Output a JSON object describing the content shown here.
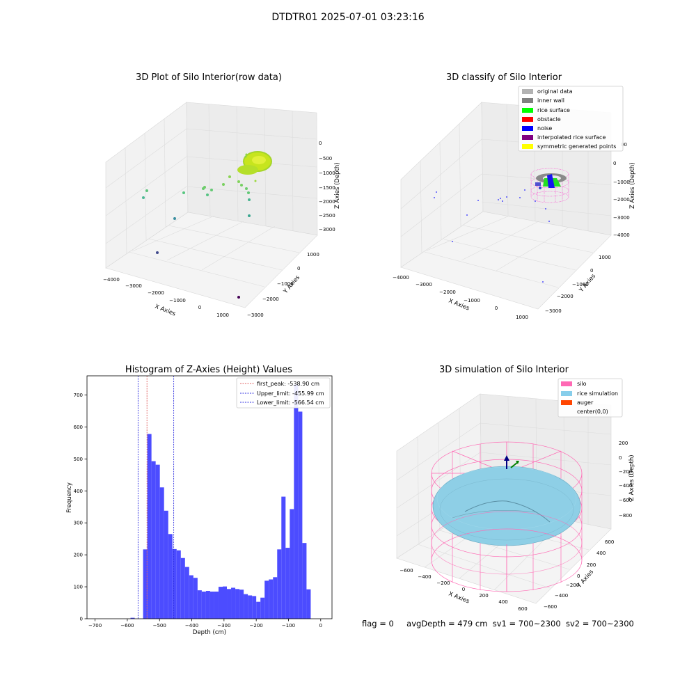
{
  "figure": {
    "suptitle": "DTDTR01 2025-07-01 03:23:16",
    "status": {
      "flag": "flag = 0",
      "avg_depth": "avgDepth = 479 cm",
      "sv1": "sv1 = 700~2300",
      "sv2": "sv2 = 700~2300"
    }
  },
  "panels": {
    "raw": {
      "title": "3D Plot of Silo Interior(row data)",
      "xlabel": "X Axies",
      "ylabel": "Y Axies",
      "zlabel": "Z Axies (Depth)",
      "xticks": [
        "−4000",
        "−3000",
        "−2000",
        "−1000",
        "0",
        "1000"
      ],
      "yticks": [
        "1000",
        "0",
        "−1000",
        "−2000",
        "−3000"
      ],
      "zticks": [
        "0",
        "−500",
        "−1000",
        "−1500",
        "−2000",
        "−2500",
        "−3000"
      ]
    },
    "classify": {
      "title": "3D classify of Silo Interior",
      "xlabel": "X Axies",
      "ylabel": "Y Axies",
      "zlabel": "Z Axies (Depth)",
      "xticks": [
        "−4000",
        "−3000",
        "−2000",
        "−1000",
        "0",
        "1000"
      ],
      "yticks": [
        "1000",
        "0",
        "−1000",
        "−2000",
        "−3000"
      ],
      "zticks": [
        "0",
        "−1000",
        "−2000",
        "−3000",
        "−4000"
      ],
      "ztick_partial": "00",
      "legend": [
        {
          "label": "original data",
          "color": "#b3b3b3"
        },
        {
          "label": "inner wall",
          "color": "#808080"
        },
        {
          "label": "rice surface",
          "color": "#00ff00"
        },
        {
          "label": "obstacle",
          "color": "#ff0000"
        },
        {
          "label": "noise",
          "color": "#0000ff"
        },
        {
          "label": "interpolated rice surface",
          "color": "#800080"
        },
        {
          "label": "symmetric generated points",
          "color": "#ffff00"
        }
      ]
    },
    "simulation": {
      "title": "3D simulation of Silo Interior",
      "xlabel": "X Axies",
      "ylabel": "Y Axies",
      "zlabel": "Z Axies (Depth)",
      "xticks": [
        "−600",
        "−400",
        "−200",
        "0",
        "200",
        "400",
        "600"
      ],
      "yticks": [
        "600",
        "400",
        "200",
        "0",
        "−200",
        "−400",
        "−600"
      ],
      "zticks": [
        "200",
        "0",
        "−200",
        "−400",
        "−600",
        "−800"
      ],
      "legend": [
        {
          "label": "silo",
          "color": "#ff69b4"
        },
        {
          "label": "rice simulation",
          "color": "#87ceeb"
        },
        {
          "label": "auger",
          "color": "#ff4500"
        },
        {
          "label": "center(0,0)",
          "color": ""
        }
      ]
    }
  },
  "chart_data": [
    {
      "type": "scatter",
      "title": "3D Plot of Silo Interior(row data)",
      "xlabel": "X Axies",
      "ylabel": "Y Axies",
      "zlabel": "Z Axies (Depth)",
      "xlim": [
        -4300,
        1500
      ],
      "ylim": [
        -3300,
        1600
      ],
      "zlim": [
        -3300,
        200
      ],
      "points_xyz": [
        [
          -3800,
          900,
          -1100
        ],
        [
          -3700,
          800,
          -1300
        ],
        [
          -2500,
          400,
          -1000
        ],
        [
          -2200,
          200,
          -1200
        ],
        [
          -1900,
          100,
          -1100
        ],
        [
          -1600,
          0,
          -1000
        ],
        [
          -1500,
          -200,
          -1300
        ],
        [
          -1300,
          100,
          -900
        ],
        [
          -1200,
          -300,
          -1100
        ],
        [
          -1000,
          -200,
          -800
        ],
        [
          -2700,
          -1000,
          -2200
        ],
        [
          -3000,
          -2200,
          -2600
        ],
        [
          -300,
          -900,
          -2100
        ],
        [
          -200,
          -700,
          -2600
        ],
        [
          300,
          -2500,
          -3000
        ]
      ],
      "cluster": {
        "description_x_range": [
          -600,
          300
        ],
        "z_range": [
          -1000,
          -400
        ],
        "shape": "annulus"
      }
    },
    {
      "type": "scatter",
      "title": "3D classify of Silo Interior",
      "xlabel": "X Axies",
      "ylabel": "Y Axies",
      "zlabel": "Z Axies (Depth)",
      "xlim": [
        -4300,
        1500
      ],
      "ylim": [
        -3300,
        1600
      ],
      "zlim": [
        -4000,
        0
      ],
      "series": [
        {
          "name": "original data",
          "color": "#b3b3b3"
        },
        {
          "name": "inner wall",
          "color": "#808080"
        },
        {
          "name": "rice surface",
          "color": "#00ff00"
        },
        {
          "name": "obstacle",
          "color": "#ff0000"
        },
        {
          "name": "noise",
          "color": "#0000ff"
        },
        {
          "name": "interpolated rice surface",
          "color": "#800080"
        },
        {
          "name": "symmetric generated points",
          "color": "#ffff00"
        }
      ]
    },
    {
      "type": "bar",
      "title": "Histogram of Z-Axies (Height) Values",
      "xlabel": "Depth (cm)",
      "ylabel": "Frequency",
      "xlim": [
        -725,
        35
      ],
      "ylim": [
        0,
        760
      ],
      "xticks": [
        -700,
        -600,
        -500,
        -400,
        -300,
        -200,
        -100,
        0
      ],
      "yticks": [
        0,
        100,
        200,
        300,
        400,
        500,
        600,
        700
      ],
      "bins": [
        {
          "x0": -590,
          "x1": -577,
          "count": 3
        },
        {
          "x0": -551,
          "x1": -538,
          "count": 217
        },
        {
          "x0": -538,
          "x1": -525,
          "count": 578
        },
        {
          "x0": -525,
          "x1": -512,
          "count": 493
        },
        {
          "x0": -512,
          "x1": -499,
          "count": 482
        },
        {
          "x0": -499,
          "x1": -486,
          "count": 411
        },
        {
          "x0": -486,
          "x1": -473,
          "count": 338
        },
        {
          "x0": -473,
          "x1": -460,
          "count": 265
        },
        {
          "x0": -460,
          "x1": -447,
          "count": 218
        },
        {
          "x0": -447,
          "x1": -434,
          "count": 214
        },
        {
          "x0": -434,
          "x1": -421,
          "count": 190
        },
        {
          "x0": -421,
          "x1": -408,
          "count": 162
        },
        {
          "x0": -408,
          "x1": -395,
          "count": 136
        },
        {
          "x0": -395,
          "x1": -382,
          "count": 128
        },
        {
          "x0": -382,
          "x1": -369,
          "count": 89
        },
        {
          "x0": -369,
          "x1": -356,
          "count": 85
        },
        {
          "x0": -356,
          "x1": -343,
          "count": 87
        },
        {
          "x0": -343,
          "x1": -330,
          "count": 85
        },
        {
          "x0": -330,
          "x1": -317,
          "count": 85
        },
        {
          "x0": -317,
          "x1": -304,
          "count": 100
        },
        {
          "x0": -304,
          "x1": -291,
          "count": 101
        },
        {
          "x0": -291,
          "x1": -278,
          "count": 93
        },
        {
          "x0": -278,
          "x1": -265,
          "count": 97
        },
        {
          "x0": -265,
          "x1": -252,
          "count": 93
        },
        {
          "x0": -252,
          "x1": -239,
          "count": 91
        },
        {
          "x0": -239,
          "x1": -226,
          "count": 77
        },
        {
          "x0": -226,
          "x1": -213,
          "count": 73
        },
        {
          "x0": -213,
          "x1": -200,
          "count": 71
        },
        {
          "x0": -200,
          "x1": -187,
          "count": 53
        },
        {
          "x0": -187,
          "x1": -174,
          "count": 66
        },
        {
          "x0": -174,
          "x1": -161,
          "count": 119
        },
        {
          "x0": -161,
          "x1": -148,
          "count": 123
        },
        {
          "x0": -148,
          "x1": -135,
          "count": 130
        },
        {
          "x0": -135,
          "x1": -122,
          "count": 217
        },
        {
          "x0": -122,
          "x1": -109,
          "count": 382
        },
        {
          "x0": -109,
          "x1": -96,
          "count": 222
        },
        {
          "x0": -96,
          "x1": -83,
          "count": 343
        },
        {
          "x0": -83,
          "x1": -70,
          "count": 733
        },
        {
          "x0": -70,
          "x1": -57,
          "count": 648
        },
        {
          "x0": -57,
          "x1": -44,
          "count": 237
        },
        {
          "x0": -44,
          "x1": -31,
          "count": 92
        }
      ],
      "bar_color": "#4c4cff",
      "vlines": [
        {
          "x": -538.9,
          "color": "#e06060",
          "label": "first_peak: -538.90 cm"
        },
        {
          "x": -455.99,
          "color": "#3030e0",
          "label": "Upper_limit: -455.99 cm"
        },
        {
          "x": -566.54,
          "color": "#3030e0",
          "label": "Lower_limit: -566.54 cm"
        }
      ],
      "legend_position": "top-right"
    },
    {
      "type": "area",
      "title": "3D simulation of Silo Interior",
      "xlabel": "X Axies",
      "ylabel": "Y Axies",
      "zlabel": "Z Axies (Depth)",
      "xlim": [
        -700,
        700
      ],
      "ylim": [
        -700,
        700
      ],
      "zlim": [
        -950,
        350
      ],
      "silo_radius": 700,
      "silo_z_range": [
        -1000,
        0
      ],
      "rice_surface_depth": -479,
      "center": [
        0,
        0
      ]
    }
  ]
}
